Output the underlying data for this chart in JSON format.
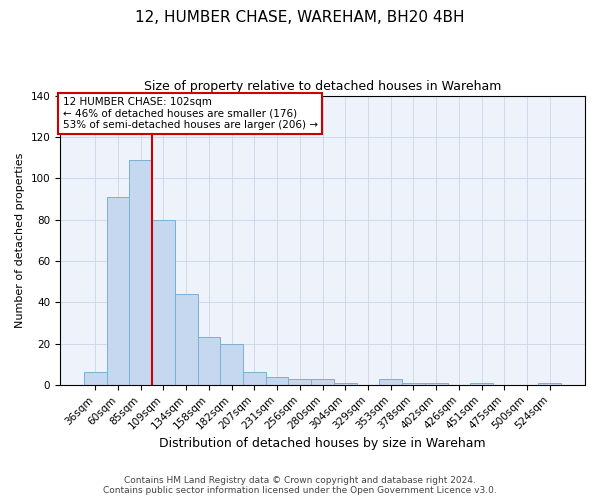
{
  "title": "12, HUMBER CHASE, WAREHAM, BH20 4BH",
  "subtitle": "Size of property relative to detached houses in Wareham",
  "xlabel": "Distribution of detached houses by size in Wareham",
  "ylabel": "Number of detached properties",
  "bar_labels": [
    "36sqm",
    "60sqm",
    "85sqm",
    "109sqm",
    "134sqm",
    "158sqm",
    "182sqm",
    "207sqm",
    "231sqm",
    "256sqm",
    "280sqm",
    "304sqm",
    "329sqm",
    "353sqm",
    "378sqm",
    "402sqm",
    "426sqm",
    "451sqm",
    "475sqm",
    "500sqm",
    "524sqm"
  ],
  "bar_values": [
    6,
    91,
    109,
    80,
    44,
    23,
    20,
    6,
    4,
    3,
    3,
    1,
    0,
    3,
    1,
    1,
    0,
    1,
    0,
    0,
    1
  ],
  "bar_color": "#c5d8f0",
  "bar_edge_color": "#7bafd4",
  "ylim": [
    0,
    140
  ],
  "yticks": [
    0,
    20,
    40,
    60,
    80,
    100,
    120,
    140
  ],
  "vline_x_index": 2.5,
  "vline_color": "#cc0000",
  "annotation_title": "12 HUMBER CHASE: 102sqm",
  "annotation_line1": "← 46% of detached houses are smaller (176)",
  "annotation_line2": "53% of semi-detached houses are larger (206) →",
  "annotation_box_color": "#ffffff",
  "annotation_box_edge_color": "#cc0000",
  "footer_line1": "Contains HM Land Registry data © Crown copyright and database right 2024.",
  "footer_line2": "Contains public sector information licensed under the Open Government Licence v3.0.",
  "title_fontsize": 11,
  "subtitle_fontsize": 9,
  "xlabel_fontsize": 9,
  "ylabel_fontsize": 8,
  "tick_fontsize": 7.5,
  "footer_fontsize": 6.5
}
